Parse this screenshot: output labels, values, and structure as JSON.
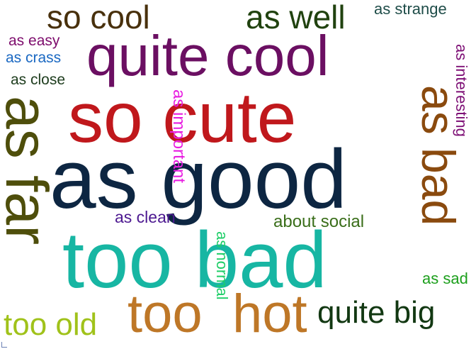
{
  "words": [
    {
      "text": "so cute",
      "color": "#c0181c"
    },
    {
      "text": "as good",
      "color": "#0d2642"
    },
    {
      "text": "too bad",
      "color": "#17b6a3"
    },
    {
      "text": "quite cool",
      "color": "#6b0f62"
    },
    {
      "text": "as far",
      "color": "#4e4e0b"
    },
    {
      "text": "as bad",
      "color": "#8a4a0e"
    },
    {
      "text": "hot",
      "color": "#be7727"
    },
    {
      "text": "too",
      "color": "#be7727"
    },
    {
      "text": "so cool",
      "color": "#48300c"
    },
    {
      "text": "as well",
      "color": "#20420f"
    },
    {
      "text": "quite big",
      "color": "#123812"
    },
    {
      "text": "too old",
      "color": "#a0c21a"
    },
    {
      "text": "as important",
      "color": "#e81ee1"
    },
    {
      "text": "as normal",
      "color": "#1fce68"
    },
    {
      "text": "as interesting",
      "color": "#7d0f75"
    },
    {
      "text": "about social",
      "color": "#3a6e1a"
    },
    {
      "text": "as strange",
      "color": "#1f4d49"
    },
    {
      "text": "as clean",
      "color": "#4c1890"
    },
    {
      "text": "as sad",
      "color": "#1c9f1c"
    },
    {
      "text": "as easy",
      "color": "#7d0c6c"
    },
    {
      "text": "as crass",
      "color": "#1a68c2"
    },
    {
      "text": "as close",
      "color": "#1d3c1d"
    }
  ]
}
